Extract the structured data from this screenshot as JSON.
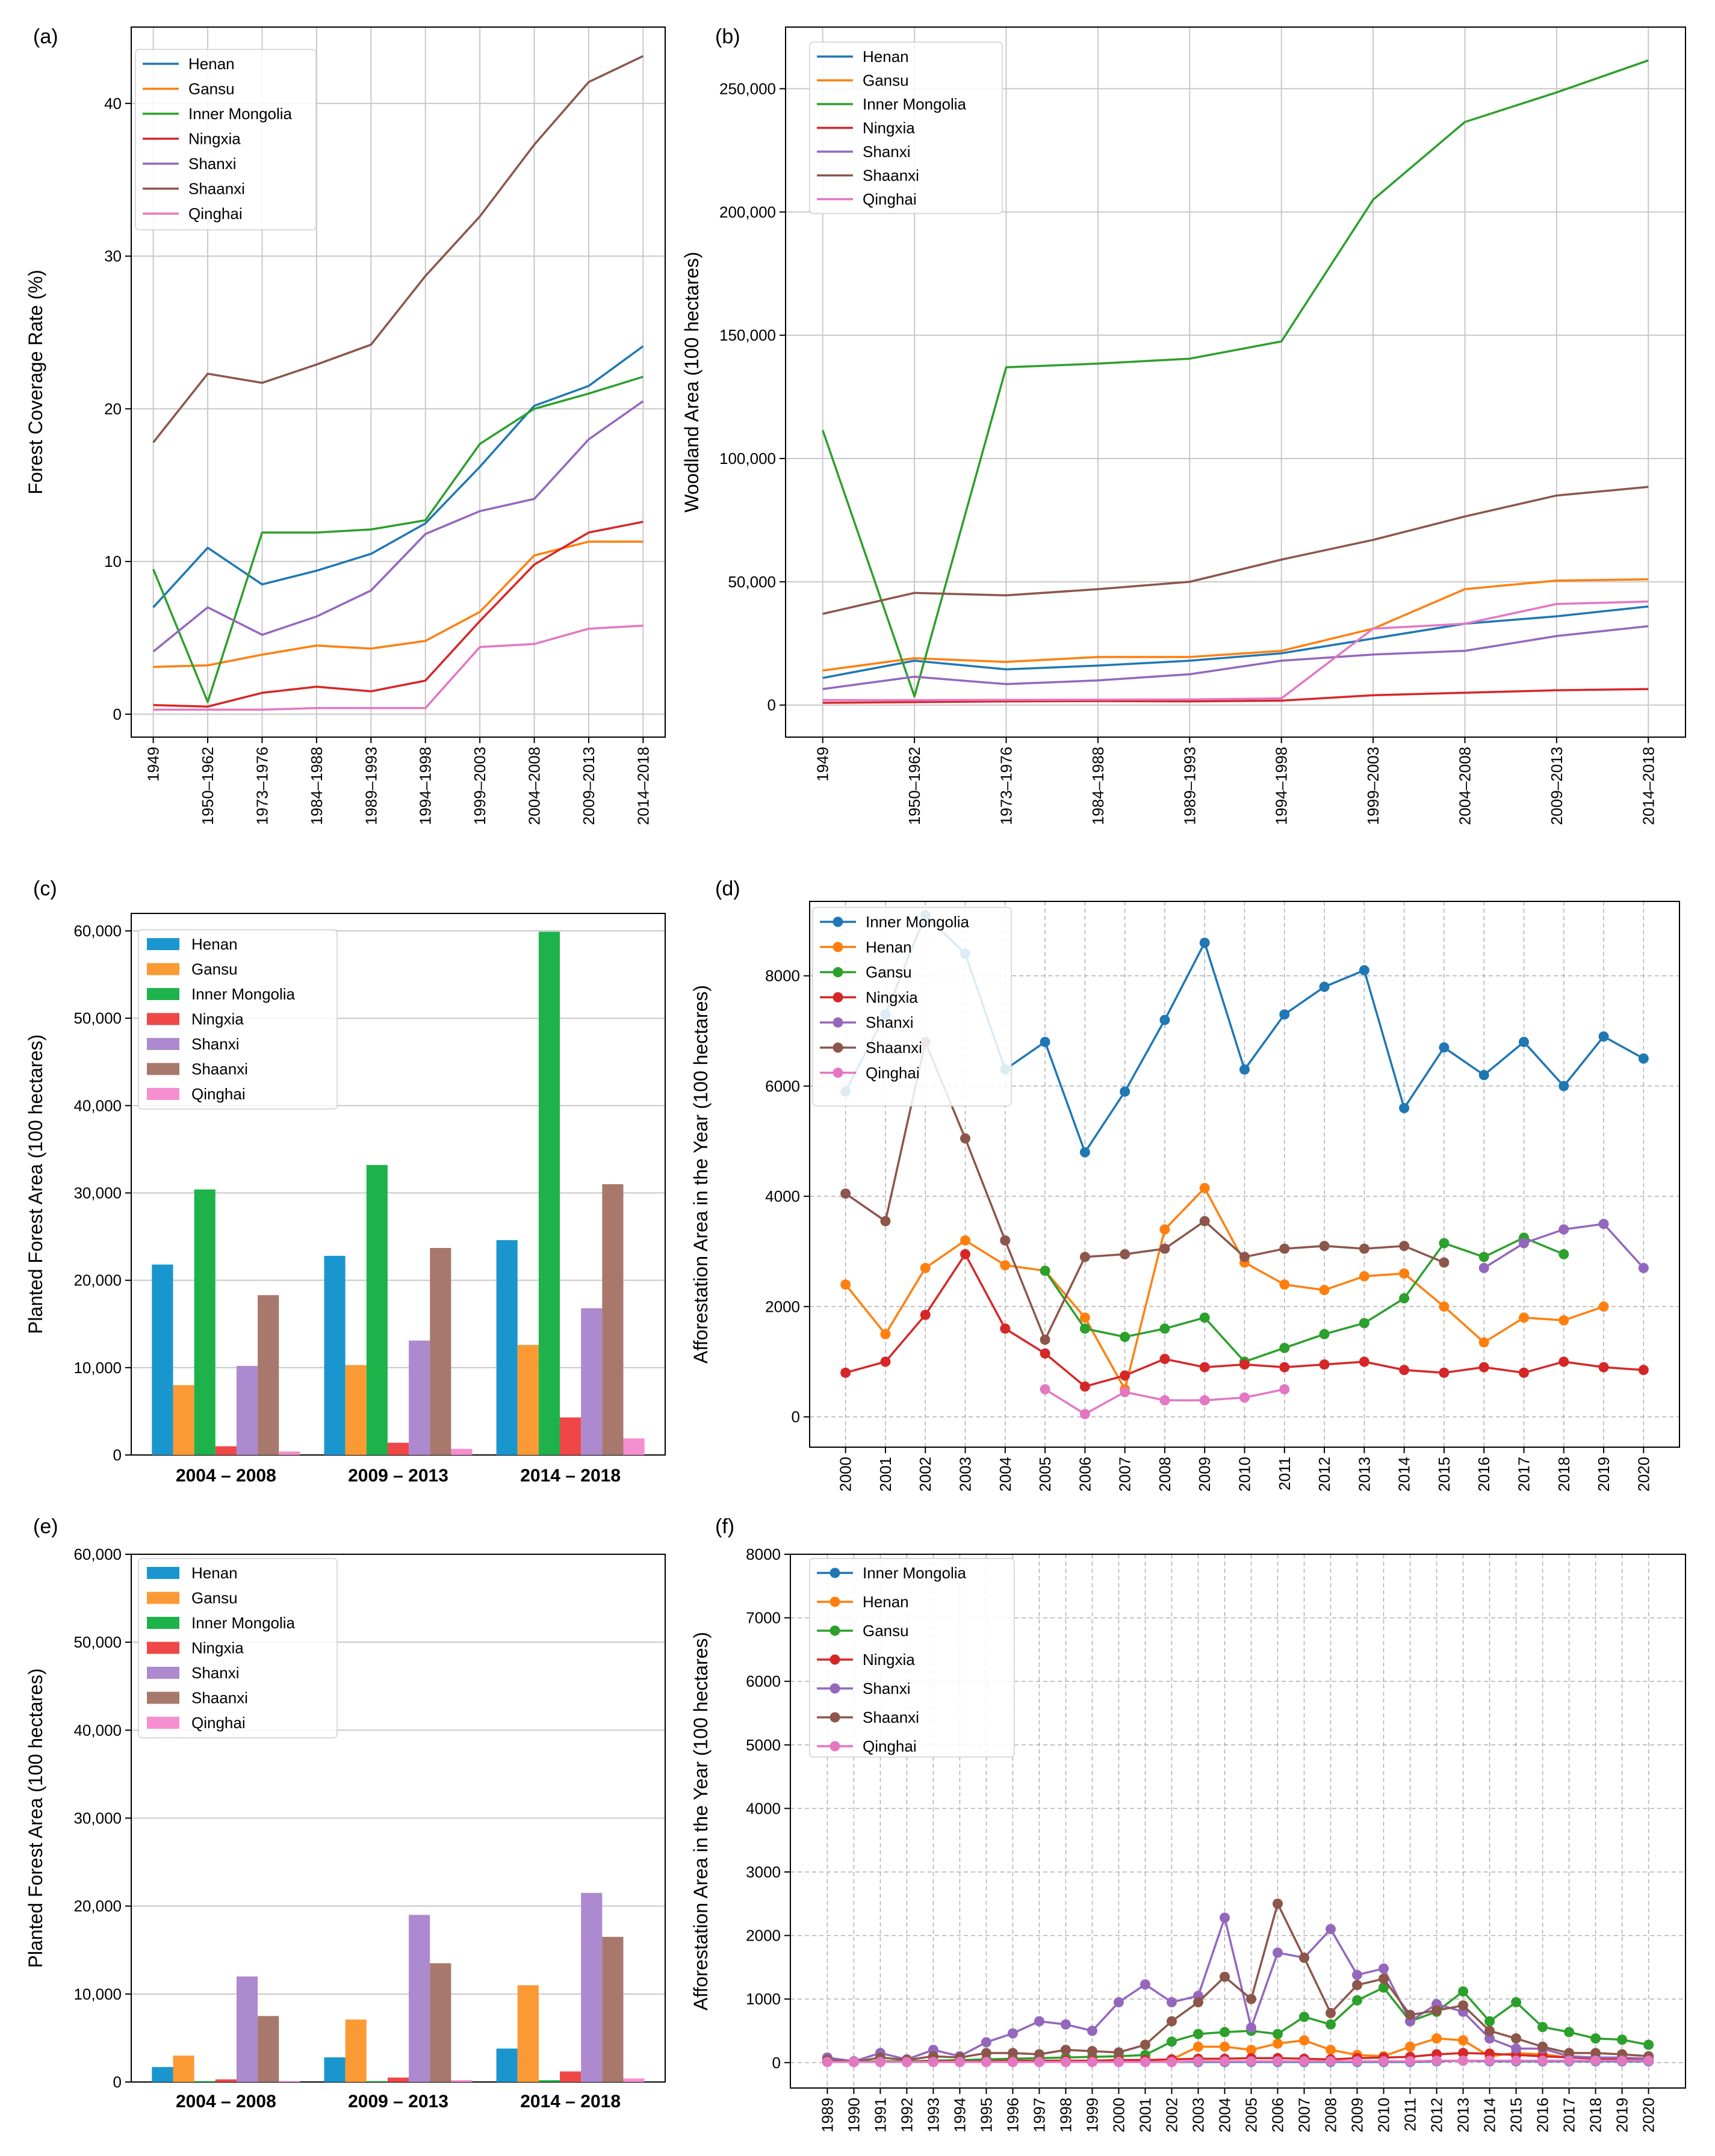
{
  "colors": {
    "Henan": "#1f77b4",
    "Gansu": "#ff7f0e",
    "Inner Mongolia": "#2ca02c",
    "Ningxia": "#d62728",
    "Shanxi": "#9467bd",
    "Shaanxi": "#8c564b",
    "Qinghai": "#e377c2"
  },
  "bar_colors": {
    "Henan": "#1a96cf",
    "Gansu": "#fb9a34",
    "Inner Mongolia": "#1db34a",
    "Ningxia": "#ef4747",
    "Shanxi": "#ad89cf",
    "Shaanxi": "#a8786c",
    "Qinghai": "#f58fd0"
  },
  "chart_data": [
    {
      "id": "a",
      "panel_label": "(a)",
      "type": "line",
      "ylabel": "Forest Coverage Rate (%)",
      "ylim": [
        -1.5,
        45
      ],
      "yticks": [
        0,
        10,
        20,
        30,
        40
      ],
      "ytick_labels": [
        "0",
        "10",
        "20",
        "30",
        "40"
      ],
      "categories": [
        "1949",
        "1950–1962",
        "1973–1976",
        "1984–1988",
        "1989–1993",
        "1994–1998",
        "1999–2003",
        "2004–2008",
        "2009–2013",
        "2014–2018"
      ],
      "legend": "top-left",
      "series": [
        {
          "name": "Henan",
          "values": [
            7.0,
            10.9,
            8.5,
            9.4,
            10.5,
            12.5,
            16.2,
            20.2,
            21.5,
            24.1
          ]
        },
        {
          "name": "Gansu",
          "values": [
            3.1,
            3.2,
            3.9,
            4.5,
            4.3,
            4.8,
            6.7,
            10.4,
            11.3,
            11.3
          ]
        },
        {
          "name": "Inner Mongolia",
          "values": [
            9.5,
            0.8,
            11.9,
            11.9,
            12.1,
            12.7,
            17.7,
            20.0,
            21.0,
            22.1
          ]
        },
        {
          "name": "Ningxia",
          "values": [
            0.6,
            0.5,
            1.4,
            1.8,
            1.5,
            2.2,
            6.1,
            9.8,
            11.9,
            12.6
          ]
        },
        {
          "name": "Shanxi",
          "values": [
            4.1,
            7.0,
            5.2,
            6.4,
            8.1,
            11.8,
            13.3,
            14.1,
            18.0,
            20.5
          ]
        },
        {
          "name": "Shaanxi",
          "values": [
            17.8,
            22.3,
            21.7,
            22.9,
            24.2,
            28.7,
            32.6,
            37.3,
            41.4,
            43.1
          ]
        },
        {
          "name": "Qinghai",
          "values": [
            0.3,
            0.3,
            0.3,
            0.4,
            0.4,
            0.4,
            4.4,
            4.6,
            5.6,
            5.8
          ]
        }
      ]
    },
    {
      "id": "b",
      "panel_label": "(b)",
      "type": "line",
      "ylabel": "Woodland Area (100 hectares)",
      "ylim": [
        -13000,
        275000
      ],
      "yticks": [
        0,
        50000,
        100000,
        150000,
        200000,
        250000
      ],
      "ytick_labels": [
        "0",
        "50,000",
        "100,000",
        "150,000",
        "200,000",
        "250,000"
      ],
      "categories": [
        "1949",
        "1950–1962",
        "1973–1976",
        "1984–1988",
        "1989–1993",
        "1994–1998",
        "1999–2003",
        "2004–2008",
        "2009–2013",
        "2014–2018"
      ],
      "legend": "top-left",
      "series": [
        {
          "name": "Henan",
          "values": [
            11000,
            18000,
            14500,
            16000,
            18000,
            21000,
            27000,
            33000,
            36000,
            40000
          ]
        },
        {
          "name": "Gansu",
          "values": [
            14000,
            19000,
            17500,
            19500,
            19500,
            22000,
            31000,
            47000,
            50500,
            51000
          ]
        },
        {
          "name": "Inner Mongolia",
          "values": [
            111500,
            3500,
            137000,
            138500,
            140500,
            147500,
            205000,
            236500,
            248500,
            261500
          ]
        },
        {
          "name": "Ningxia",
          "values": [
            900,
            1200,
            1500,
            1600,
            1500,
            1800,
            4000,
            5000,
            6000,
            6500
          ]
        },
        {
          "name": "Shanxi",
          "values": [
            6500,
            11500,
            8500,
            10000,
            12500,
            18000,
            20500,
            22000,
            28000,
            32000
          ]
        },
        {
          "name": "Shaanxi",
          "values": [
            37000,
            45500,
            44500,
            47000,
            50000,
            59000,
            67000,
            76500,
            85000,
            88500
          ]
        },
        {
          "name": "Qinghai",
          "values": [
            2000,
            2000,
            2100,
            2200,
            2300,
            2700,
            31000,
            33000,
            41000,
            42000
          ]
        }
      ]
    },
    {
      "id": "c",
      "panel_label": "(c)",
      "type": "bar",
      "ylabel": "Planted Forest Area (100 hectares)",
      "ylim": [
        0,
        62000
      ],
      "yticks": [
        0,
        10000,
        20000,
        30000,
        40000,
        50000,
        60000
      ],
      "ytick_labels": [
        "0",
        "10,000",
        "20,000",
        "30,000",
        "40,000",
        "50,000",
        "60,000"
      ],
      "categories": [
        "2004 – 2008",
        "2009 – 2013",
        "2014 – 2018"
      ],
      "legend": "top-left",
      "series": [
        {
          "name": "Henan",
          "values": [
            21800,
            22800,
            24600
          ]
        },
        {
          "name": "Gansu",
          "values": [
            8000,
            10300,
            12600
          ]
        },
        {
          "name": "Inner Mongolia",
          "values": [
            30400,
            33200,
            59900
          ]
        },
        {
          "name": "Ningxia",
          "values": [
            1000,
            1400,
            4300
          ]
        },
        {
          "name": "Shanxi",
          "values": [
            10200,
            13100,
            16800
          ]
        },
        {
          "name": "Shaanxi",
          "values": [
            18300,
            23700,
            31000
          ]
        },
        {
          "name": "Qinghai",
          "values": [
            400,
            700,
            1900
          ]
        }
      ]
    },
    {
      "id": "d",
      "panel_label": "(d)",
      "type": "line",
      "ylabel": "Afforestation Area in the Year (100 hectares)",
      "ylim": [
        -550,
        9350
      ],
      "yticks": [
        0,
        2000,
        4000,
        6000,
        8000
      ],
      "ytick_labels": [
        "0",
        "2000",
        "4000",
        "6000",
        "8000"
      ],
      "x": [
        2000,
        2001,
        2002,
        2003,
        2004,
        2005,
        2006,
        2007,
        2008,
        2009,
        2010,
        2011,
        2012,
        2013,
        2014,
        2015,
        2016,
        2017,
        2018,
        2019,
        2020
      ],
      "legend": "top-left",
      "markers": true,
      "series": [
        {
          "name": "Inner Mongolia",
          "color_key": "Henan",
          "values": [
            5900,
            7300,
            9100,
            8400,
            6300,
            6800,
            4800,
            5900,
            7200,
            8600,
            6300,
            7300,
            7800,
            8100,
            5600,
            6700,
            6200,
            6800,
            6000,
            6900,
            6500
          ]
        },
        {
          "name": "Henan",
          "color_key": "Gansu",
          "values": [
            2400,
            1500,
            2700,
            3200,
            2750,
            2650,
            1800,
            500,
            3400,
            4150,
            2800,
            2400,
            2300,
            2550,
            2600,
            2000,
            1350,
            1800,
            1750,
            2000,
            null
          ]
        },
        {
          "name": "Gansu",
          "color_key": "Inner Mongolia",
          "values": [
            null,
            null,
            null,
            null,
            null,
            2650,
            1600,
            1450,
            1600,
            1800,
            1000,
            1250,
            1500,
            1700,
            2150,
            3150,
            2900,
            3250,
            2950,
            null,
            null
          ]
        },
        {
          "name": "Ningxia",
          "color_key": "Ningxia",
          "values": [
            800,
            1000,
            1850,
            2950,
            1600,
            1150,
            550,
            750,
            1050,
            900,
            950,
            900,
            950,
            1000,
            850,
            800,
            900,
            800,
            1000,
            900,
            850
          ]
        },
        {
          "name": "Shanxi",
          "color_key": "Shanxi",
          "values": [
            null,
            null,
            null,
            null,
            null,
            null,
            null,
            null,
            null,
            null,
            null,
            null,
            null,
            null,
            null,
            null,
            2700,
            3150,
            3400,
            3500,
            2700
          ]
        },
        {
          "name": "Shaanxi",
          "color_key": "Shaanxi",
          "values": [
            4050,
            3550,
            6800,
            5050,
            3200,
            1400,
            2900,
            2950,
            3050,
            3550,
            2900,
            3050,
            3100,
            3050,
            3100,
            2800,
            null,
            null,
            null,
            null,
            null
          ]
        },
        {
          "name": "Qinghai",
          "color_key": "Qinghai",
          "values": [
            null,
            null,
            null,
            null,
            null,
            500,
            50,
            450,
            300,
            300,
            350,
            500,
            null,
            null,
            null,
            null,
            null,
            null,
            null,
            null,
            null
          ]
        }
      ]
    },
    {
      "id": "e",
      "panel_label": "(e)",
      "type": "bar",
      "ylabel": "Planted Forest Area (100 hectares)",
      "ylim": [
        0,
        60000
      ],
      "yticks": [
        0,
        10000,
        20000,
        30000,
        40000,
        50000,
        60000
      ],
      "ytick_labels": [
        "0",
        "10,000",
        "20,000",
        "30,000",
        "40,000",
        "50,000",
        "60,000"
      ],
      "categories": [
        "2004 – 2008",
        "2009 – 2013",
        "2014 – 2018"
      ],
      "legend": "top-left",
      "series": [
        {
          "name": "Henan",
          "values": [
            1700,
            2800,
            3800
          ]
        },
        {
          "name": "Gansu",
          "values": [
            3000,
            7100,
            11000
          ]
        },
        {
          "name": "Inner Mongolia",
          "values": [
            100,
            100,
            200
          ]
        },
        {
          "name": "Ningxia",
          "values": [
            300,
            500,
            1200
          ]
        },
        {
          "name": "Shanxi",
          "values": [
            12000,
            19000,
            21500
          ]
        },
        {
          "name": "Shaanxi",
          "values": [
            7500,
            13500,
            16500
          ]
        },
        {
          "name": "Qinghai",
          "values": [
            100,
            200,
            400
          ]
        }
      ]
    },
    {
      "id": "f",
      "panel_label": "(f)",
      "type": "line",
      "ylabel": "Afforestation Area in the Year (100 hectares)",
      "ylim": [
        -400,
        8000
      ],
      "yticks": [
        0,
        1000,
        2000,
        3000,
        4000,
        5000,
        6000,
        7000,
        8000
      ],
      "ytick_labels": [
        "0",
        "1000",
        "2000",
        "3000",
        "4000",
        "5000",
        "6000",
        "7000",
        "8000"
      ],
      "x": [
        1989,
        1990,
        1991,
        1992,
        1993,
        1994,
        1995,
        1996,
        1997,
        1998,
        1999,
        2000,
        2001,
        2002,
        2003,
        2004,
        2005,
        2006,
        2007,
        2008,
        2009,
        2010,
        2011,
        2012,
        2013,
        2014,
        2015,
        2016,
        2017,
        2018,
        2019,
        2020
      ],
      "legend": "top-left",
      "markers": true,
      "series": [
        {
          "name": "Inner Mongolia",
          "color_key": "Henan",
          "values": [
            10,
            10,
            10,
            10,
            10,
            10,
            10,
            10,
            10,
            10,
            10,
            10,
            10,
            10,
            10,
            10,
            10,
            10,
            10,
            10,
            10,
            10,
            10,
            20,
            30,
            20,
            20,
            20,
            20,
            20,
            20,
            20
          ]
        },
        {
          "name": "Henan",
          "color_key": "Gansu",
          "values": [
            20,
            10,
            20,
            10,
            20,
            20,
            20,
            30,
            20,
            30,
            20,
            30,
            40,
            50,
            250,
            250,
            200,
            300,
            350,
            200,
            120,
            100,
            250,
            380,
            350,
            100,
            150,
            130,
            80,
            80,
            50,
            40
          ]
        },
        {
          "name": "Gansu",
          "color_key": "Inner Mongolia",
          "values": [
            30,
            10,
            20,
            20,
            30,
            40,
            50,
            60,
            70,
            80,
            90,
            100,
            120,
            330,
            450,
            480,
            500,
            450,
            720,
            600,
            980,
            1180,
            650,
            800,
            1120,
            650,
            950,
            560,
            480,
            380,
            360,
            280
          ]
        },
        {
          "name": "Ningxia",
          "color_key": "Ningxia",
          "values": [
            20,
            10,
            10,
            10,
            20,
            20,
            20,
            30,
            30,
            30,
            30,
            40,
            40,
            50,
            60,
            60,
            70,
            70,
            60,
            50,
            70,
            80,
            90,
            130,
            150,
            140,
            120,
            100,
            80,
            60,
            50,
            40
          ]
        },
        {
          "name": "Shanxi",
          "color_key": "Shanxi",
          "values": [
            80,
            20,
            150,
            50,
            200,
            100,
            320,
            460,
            650,
            600,
            500,
            950,
            1230,
            950,
            1050,
            2280,
            550,
            1730,
            1650,
            2100,
            1380,
            1480,
            650,
            920,
            800,
            380,
            220,
            220,
            100,
            80,
            80,
            60
          ]
        },
        {
          "name": "Shaanxi",
          "color_key": "Shaanxi",
          "values": [
            40,
            10,
            80,
            40,
            100,
            80,
            150,
            150,
            130,
            200,
            180,
            160,
            280,
            650,
            950,
            1350,
            1000,
            2500,
            1650,
            780,
            1220,
            1320,
            750,
            820,
            900,
            500,
            380,
            250,
            150,
            150,
            130,
            100
          ]
        },
        {
          "name": "Qinghai",
          "color_key": "Qinghai",
          "values": [
            10,
            10,
            10,
            10,
            10,
            10,
            10,
            10,
            10,
            10,
            10,
            10,
            10,
            10,
            20,
            20,
            20,
            20,
            20,
            20,
            20,
            20,
            20,
            30,
            30,
            30,
            30,
            30,
            30,
            30,
            30,
            30
          ]
        }
      ]
    }
  ]
}
